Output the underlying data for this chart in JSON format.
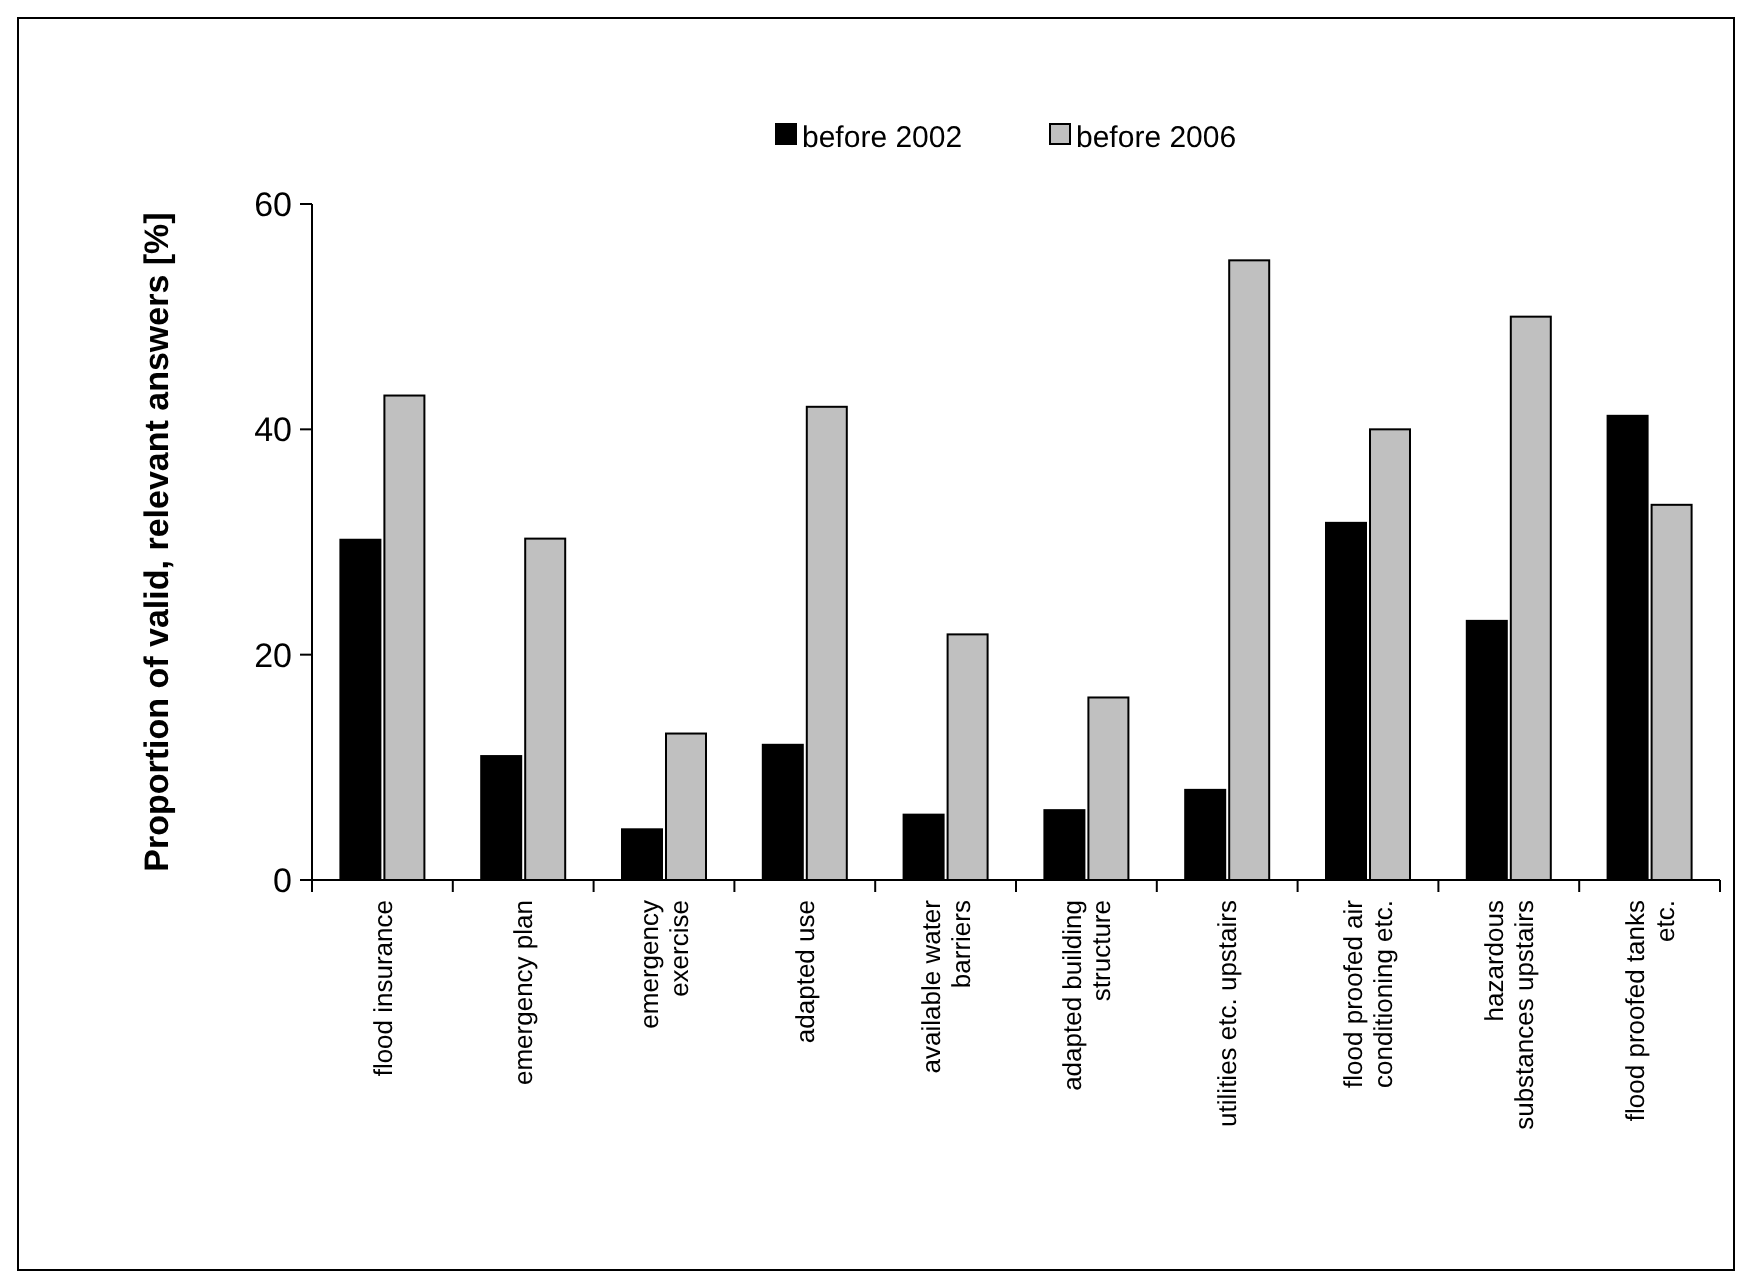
{
  "chart_data": {
    "type": "bar",
    "ylabel": "Proportion of valid, relevant  answers [%]",
    "categories": [
      "flood insurance",
      "emergency plan",
      "emergency\nexercise",
      "adapted use",
      "available water\nbarriers",
      "adapted building\nstructure",
      "utilities etc. upstairs",
      "flood proofed air\nconditioning etc.",
      "hazardous\nsubstances upstairs",
      "flood proofed tanks\netc."
    ],
    "series": [
      {
        "name": "before 2002",
        "color": "#000000",
        "values": [
          30.2,
          11,
          4.5,
          12,
          5.8,
          6.2,
          8,
          31.7,
          23,
          41.2
        ]
      },
      {
        "name": "before 2006",
        "color": "#c0c0c0",
        "values": [
          43,
          30.3,
          13,
          42,
          21.8,
          16.2,
          55,
          40,
          50,
          33.3
        ]
      }
    ],
    "ylim": [
      0,
      60
    ],
    "yticks": [
      0,
      20,
      40,
      60
    ],
    "grid": false,
    "legend": "top"
  }
}
